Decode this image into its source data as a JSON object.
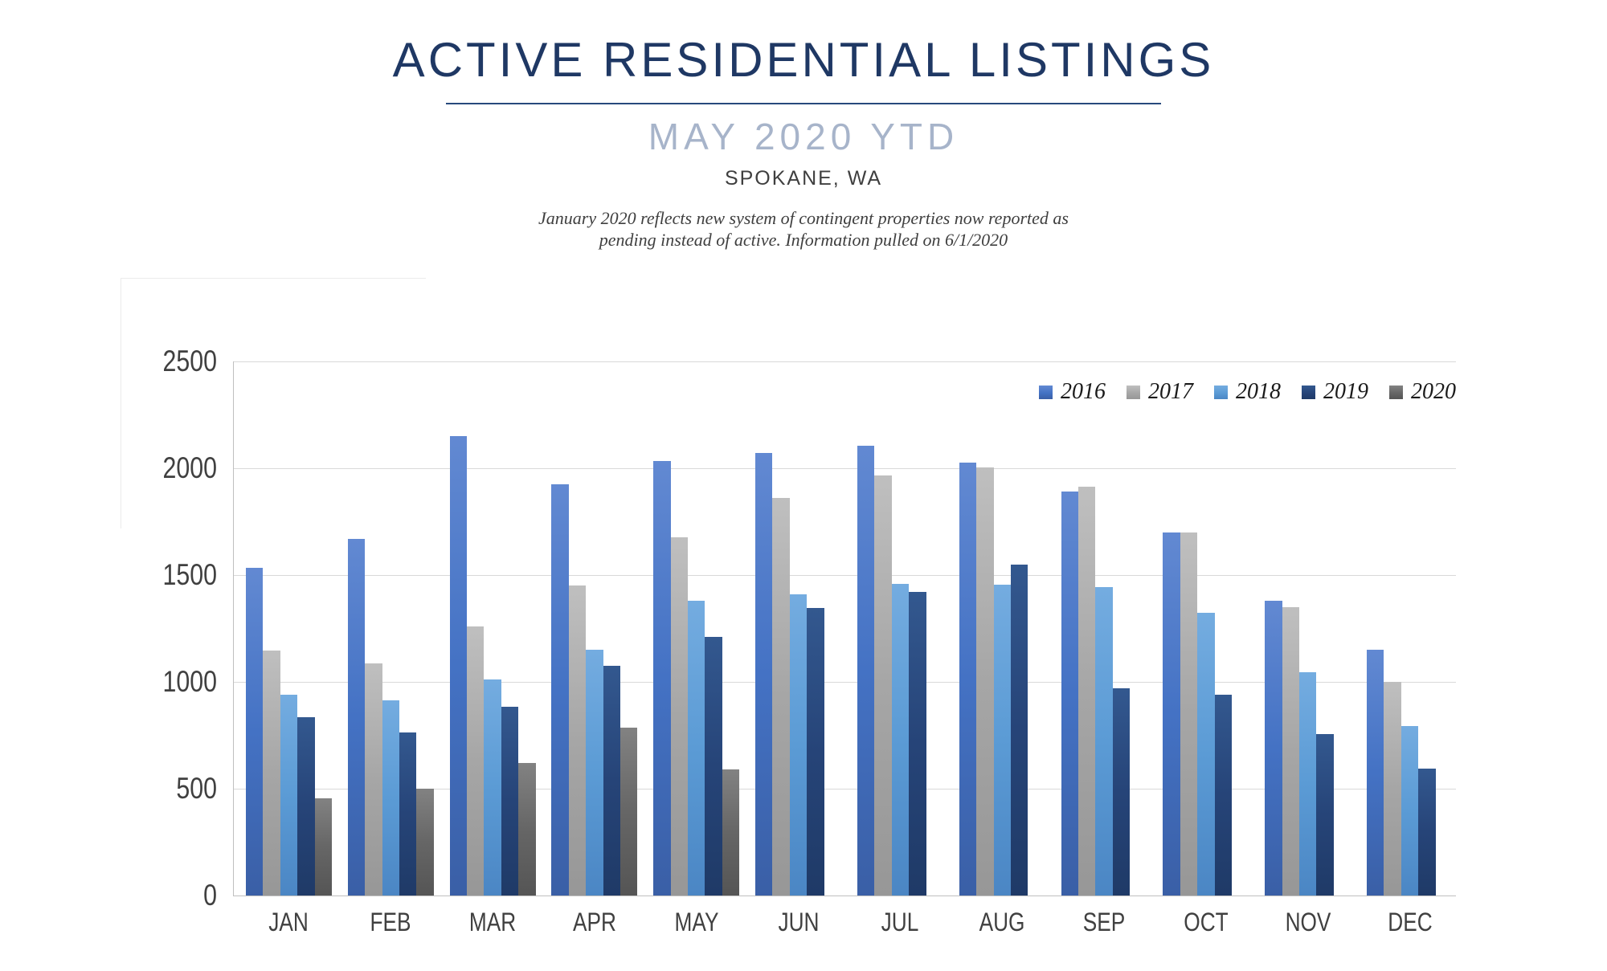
{
  "header": {
    "title": "ACTIVE RESIDENTIAL LISTINGS",
    "subtitle": "MAY 2020 YTD",
    "location": "SPOKANE, WA",
    "note_line1": "January 2020 reflects new system of contingent properties now reported as",
    "note_line2": "pending instead of active.  Information pulled on 6/1/2020"
  },
  "chart_data": {
    "type": "bar",
    "title": "ACTIVE RESIDENTIAL LISTINGS",
    "subtitle": "MAY 2020 YTD",
    "region": "SPOKANE, WA",
    "categories": [
      "JAN",
      "FEB",
      "MAR",
      "APR",
      "MAY",
      "JUN",
      "JUL",
      "AUG",
      "SEP",
      "OCT",
      "NOV",
      "DEC"
    ],
    "series": [
      {
        "name": "2016",
        "color": "#4472C4",
        "color_top": "#6289D2",
        "color_bottom": "#3A5FA6",
        "values": [
          1535,
          1670,
          2150,
          1925,
          2035,
          2070,
          2105,
          2025,
          1890,
          1700,
          1380,
          1150
        ]
      },
      {
        "name": "2017",
        "color": "#A6A6A6",
        "color_top": "#BFBFBF",
        "color_bottom": "#979797",
        "values": [
          1145,
          1085,
          1260,
          1450,
          1675,
          1860,
          1965,
          2005,
          1915,
          1700,
          1350,
          1000
        ]
      },
      {
        "name": "2018",
        "color": "#5B9BD5",
        "color_top": "#74ACE0",
        "color_bottom": "#4B86C4",
        "values": [
          940,
          915,
          1010,
          1150,
          1380,
          1410,
          1460,
          1455,
          1445,
          1325,
          1045,
          795
        ]
      },
      {
        "name": "2019",
        "color": "#264478",
        "color_top": "#33588F",
        "color_bottom": "#1F3A67",
        "values": [
          835,
          765,
          885,
          1075,
          1210,
          1345,
          1420,
          1550,
          970,
          940,
          755,
          595
        ]
      },
      {
        "name": "2020",
        "color": "#666666",
        "color_top": "#828282",
        "color_bottom": "#555555",
        "values": [
          455,
          500,
          620,
          785,
          590,
          null,
          null,
          null,
          null,
          null,
          null,
          null
        ]
      }
    ],
    "ylim": [
      0,
      2500
    ],
    "ytick_step": 500,
    "ytick_labels": [
      "0",
      "500",
      "1000",
      "1500",
      "2000",
      "2500"
    ],
    "grid": true,
    "legend_position": "top-right",
    "axis_color": "#BFBFBF",
    "grid_color": "#D9D9D9"
  }
}
